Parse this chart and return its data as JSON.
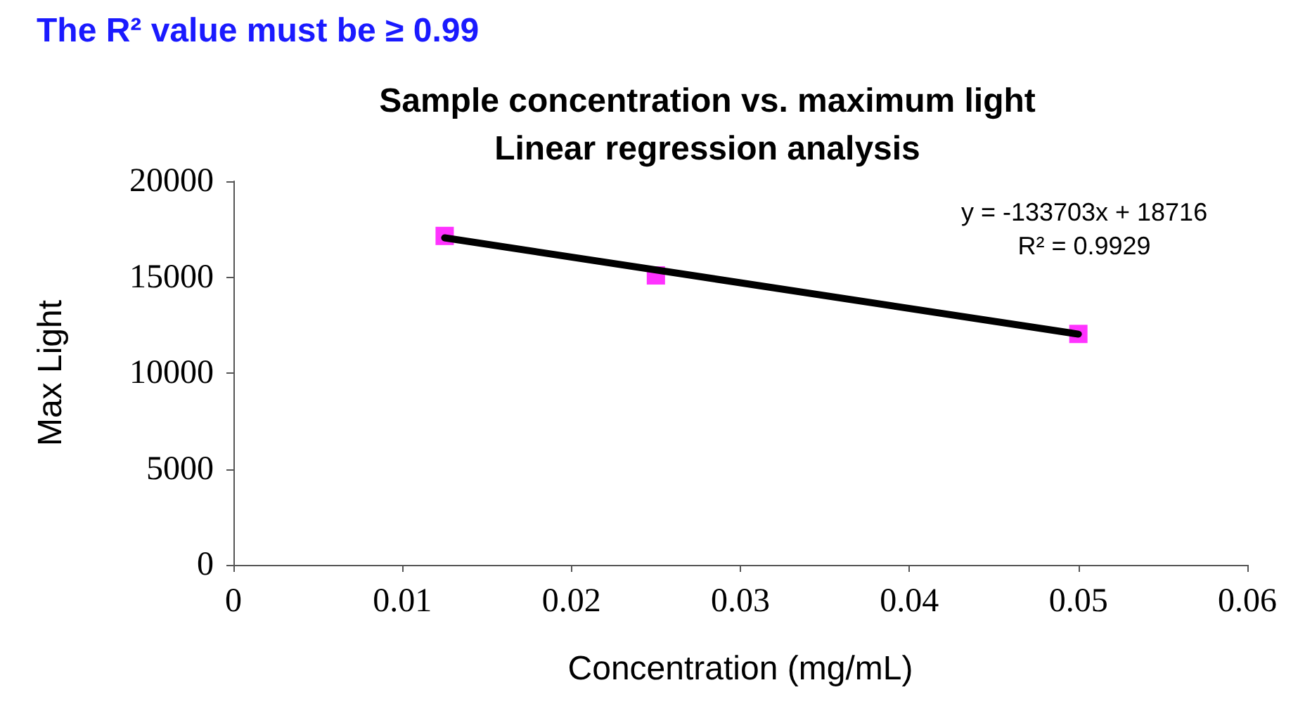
{
  "chart_data": {
    "type": "scatter",
    "title": "Sample concentration vs. maximum light\nLinear regression analysis",
    "xlabel": "Concentration (mg/mL)",
    "ylabel": "Max Light",
    "annotations": [
      "The R² value must be ≥ 0.99",
      "y = -133703x + 18716",
      "R² = 0.9929"
    ],
    "x": [
      0.0125,
      0.025,
      0.05
    ],
    "series": [
      {
        "color": "#ff00ff",
        "marker": "square",
        "values": [
          17150,
          15090,
          12040
        ]
      },
      {
        "type": "line",
        "color": "#000000",
        "marker": "none",
        "line_style": "solid",
        "x": [
          0.0125,
          0.05
        ],
        "values": [
          17050,
          12030
        ]
      }
    ],
    "xlim": [
      0,
      0.06
    ],
    "xticks": [
      0,
      0.01,
      0.02,
      0.03,
      0.04,
      0.05,
      0.06
    ],
    "ylim": [
      0,
      20000
    ],
    "yticks": [
      0,
      5000,
      10000,
      15000,
      20000
    ],
    "grid": false
  }
}
